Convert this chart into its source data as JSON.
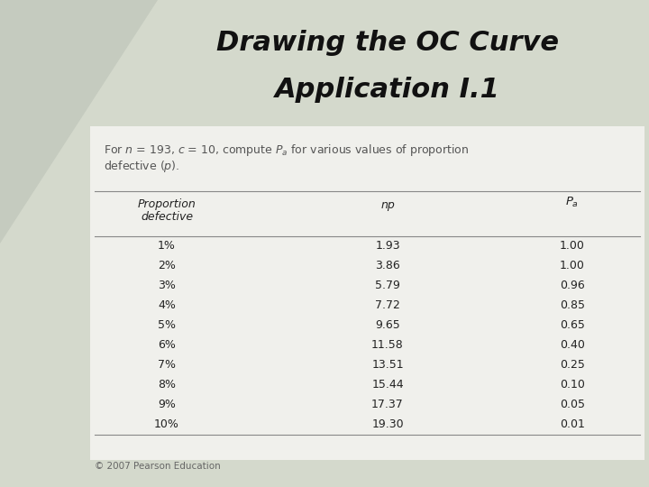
{
  "title_line1": "Drawing the OC Curve",
  "title_line2": "Application I.1",
  "rows": [
    [
      "1%",
      "1.93",
      "1.00"
    ],
    [
      "2%",
      "3.86",
      "1.00"
    ],
    [
      "3%",
      "5.79",
      "0.96"
    ],
    [
      "4%",
      "7.72",
      "0.85"
    ],
    [
      "5%",
      "9.65",
      "0.65"
    ],
    [
      "6%",
      "11.58",
      "0.40"
    ],
    [
      "7%",
      "13.51",
      "0.25"
    ],
    [
      "8%",
      "15.44",
      "0.10"
    ],
    [
      "9%",
      "17.37",
      "0.05"
    ],
    [
      "10%",
      "19.30",
      "0.01"
    ]
  ],
  "footer": "© 2007 Pearson Education",
  "slide_bg": "#d4d9cc",
  "title_bg": "#d4d9cc",
  "content_bg": "#f0f0ec",
  "white_bg": "#ffffff",
  "triangle_color": "#c5cbbf",
  "line_color": "#888888",
  "title_color": "#111111",
  "text_color": "#333333",
  "subtitle_color": "#555555"
}
